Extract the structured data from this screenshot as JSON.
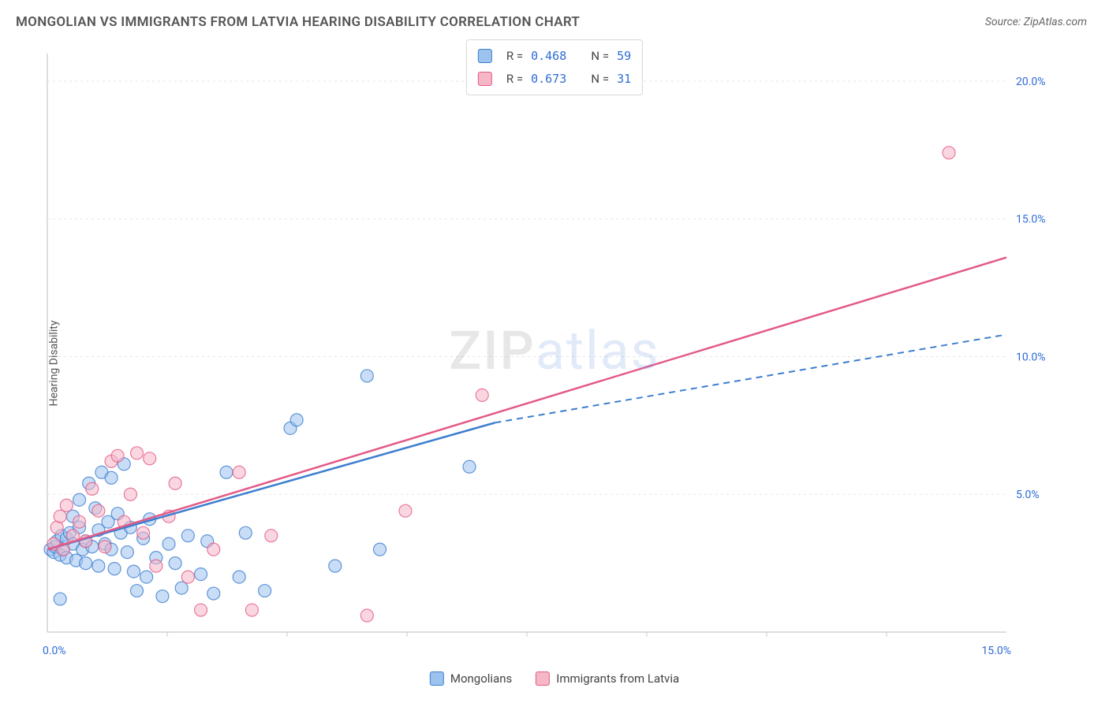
{
  "title": "MONGOLIAN VS IMMIGRANTS FROM LATVIA HEARING DISABILITY CORRELATION CHART",
  "source_label": "Source: ZipAtlas.com",
  "watermark": {
    "part1": "ZIP",
    "part2": "atlas"
  },
  "y_axis_label": "Hearing Disability",
  "chart": {
    "type": "scatter",
    "background_color": "#ffffff",
    "grid_color": "#e5e5e5",
    "grid_dash": "3,4",
    "plot_border_color": "#dddddd",
    "x": {
      "min": 0,
      "max": 15,
      "ticks": [
        0,
        15
      ],
      "tick_labels": [
        "0.0%",
        "15.0%"
      ]
    },
    "y": {
      "min": 0,
      "max": 21,
      "ticks": [
        5,
        10,
        15,
        20
      ],
      "tick_labels": [
        "5.0%",
        "10.0%",
        "15.0%",
        "20.0%"
      ]
    },
    "tick_label_color": "#2e6bd6",
    "tick_label_fontsize": 14,
    "marker_radius": 8,
    "marker_opacity": 0.55,
    "series": [
      {
        "key": "mongolians",
        "label": "Mongolians",
        "color_fill": "#9cc2ee",
        "color_stroke": "#3d7ecf",
        "r_value": "0.468",
        "n_value": "59",
        "trend": {
          "x1": 0,
          "y1": 3.0,
          "x2_solid": 7.0,
          "y2_solid": 7.6,
          "x2_dash": 15,
          "y2_dash": 10.8,
          "dash": "8,6",
          "width": 2
        },
        "points": [
          [
            0.05,
            3.0
          ],
          [
            0.1,
            2.9
          ],
          [
            0.12,
            3.1
          ],
          [
            0.15,
            3.3
          ],
          [
            0.2,
            2.8
          ],
          [
            0.22,
            3.5
          ],
          [
            0.25,
            3.0
          ],
          [
            0.3,
            3.4
          ],
          [
            0.3,
            2.7
          ],
          [
            0.35,
            3.6
          ],
          [
            0.4,
            4.2
          ],
          [
            0.4,
            3.2
          ],
          [
            0.45,
            2.6
          ],
          [
            0.5,
            3.8
          ],
          [
            0.5,
            4.8
          ],
          [
            0.55,
            3.0
          ],
          [
            0.6,
            3.3
          ],
          [
            0.6,
            2.5
          ],
          [
            0.65,
            5.4
          ],
          [
            0.7,
            3.1
          ],
          [
            0.75,
            4.5
          ],
          [
            0.8,
            3.7
          ],
          [
            0.8,
            2.4
          ],
          [
            0.85,
            5.8
          ],
          [
            0.9,
            3.2
          ],
          [
            0.95,
            4.0
          ],
          [
            1.0,
            5.6
          ],
          [
            1.0,
            3.0
          ],
          [
            1.05,
            2.3
          ],
          [
            1.1,
            4.3
          ],
          [
            1.15,
            3.6
          ],
          [
            1.2,
            6.1
          ],
          [
            1.25,
            2.9
          ],
          [
            1.3,
            3.8
          ],
          [
            1.35,
            2.2
          ],
          [
            1.4,
            1.5
          ],
          [
            1.5,
            3.4
          ],
          [
            1.55,
            2.0
          ],
          [
            1.6,
            4.1
          ],
          [
            1.7,
            2.7
          ],
          [
            1.8,
            1.3
          ],
          [
            1.9,
            3.2
          ],
          [
            2.0,
            2.5
          ],
          [
            2.1,
            1.6
          ],
          [
            2.2,
            3.5
          ],
          [
            2.4,
            2.1
          ],
          [
            2.5,
            3.3
          ],
          [
            2.6,
            1.4
          ],
          [
            2.8,
            5.8
          ],
          [
            3.0,
            2.0
          ],
          [
            3.1,
            3.6
          ],
          [
            3.4,
            1.5
          ],
          [
            3.8,
            7.4
          ],
          [
            3.9,
            7.7
          ],
          [
            4.5,
            2.4
          ],
          [
            5.0,
            9.3
          ],
          [
            5.2,
            3.0
          ],
          [
            6.6,
            6.0
          ],
          [
            0.2,
            1.2
          ]
        ]
      },
      {
        "key": "latvia",
        "label": "Immigrants from Latvia",
        "color_fill": "#f5b6c6",
        "color_stroke": "#e35a87",
        "r_value": "0.673",
        "n_value": "31",
        "trend": {
          "x1": 0,
          "y1": 3.0,
          "x2_solid": 15.0,
          "y2_solid": 13.6,
          "dash": null,
          "width": 2
        },
        "points": [
          [
            0.1,
            3.2
          ],
          [
            0.15,
            3.8
          ],
          [
            0.2,
            4.2
          ],
          [
            0.25,
            3.0
          ],
          [
            0.3,
            4.6
          ],
          [
            0.4,
            3.5
          ],
          [
            0.5,
            4.0
          ],
          [
            0.6,
            3.3
          ],
          [
            0.7,
            5.2
          ],
          [
            0.8,
            4.4
          ],
          [
            0.9,
            3.1
          ],
          [
            1.0,
            6.2
          ],
          [
            1.1,
            6.4
          ],
          [
            1.2,
            4.0
          ],
          [
            1.3,
            5.0
          ],
          [
            1.4,
            6.5
          ],
          [
            1.5,
            3.6
          ],
          [
            1.6,
            6.3
          ],
          [
            1.7,
            2.4
          ],
          [
            1.9,
            4.2
          ],
          [
            2.0,
            5.4
          ],
          [
            2.2,
            2.0
          ],
          [
            2.4,
            0.8
          ],
          [
            2.6,
            3.0
          ],
          [
            3.0,
            5.8
          ],
          [
            3.2,
            0.8
          ],
          [
            3.5,
            3.5
          ],
          [
            5.0,
            0.6
          ],
          [
            5.6,
            4.4
          ],
          [
            6.8,
            8.6
          ],
          [
            14.1,
            17.4
          ]
        ]
      }
    ]
  },
  "top_legend": {
    "r_label": "R =",
    "n_label": "N ="
  },
  "footer_legend": {
    "items": [
      "mongolians",
      "latvia"
    ]
  }
}
